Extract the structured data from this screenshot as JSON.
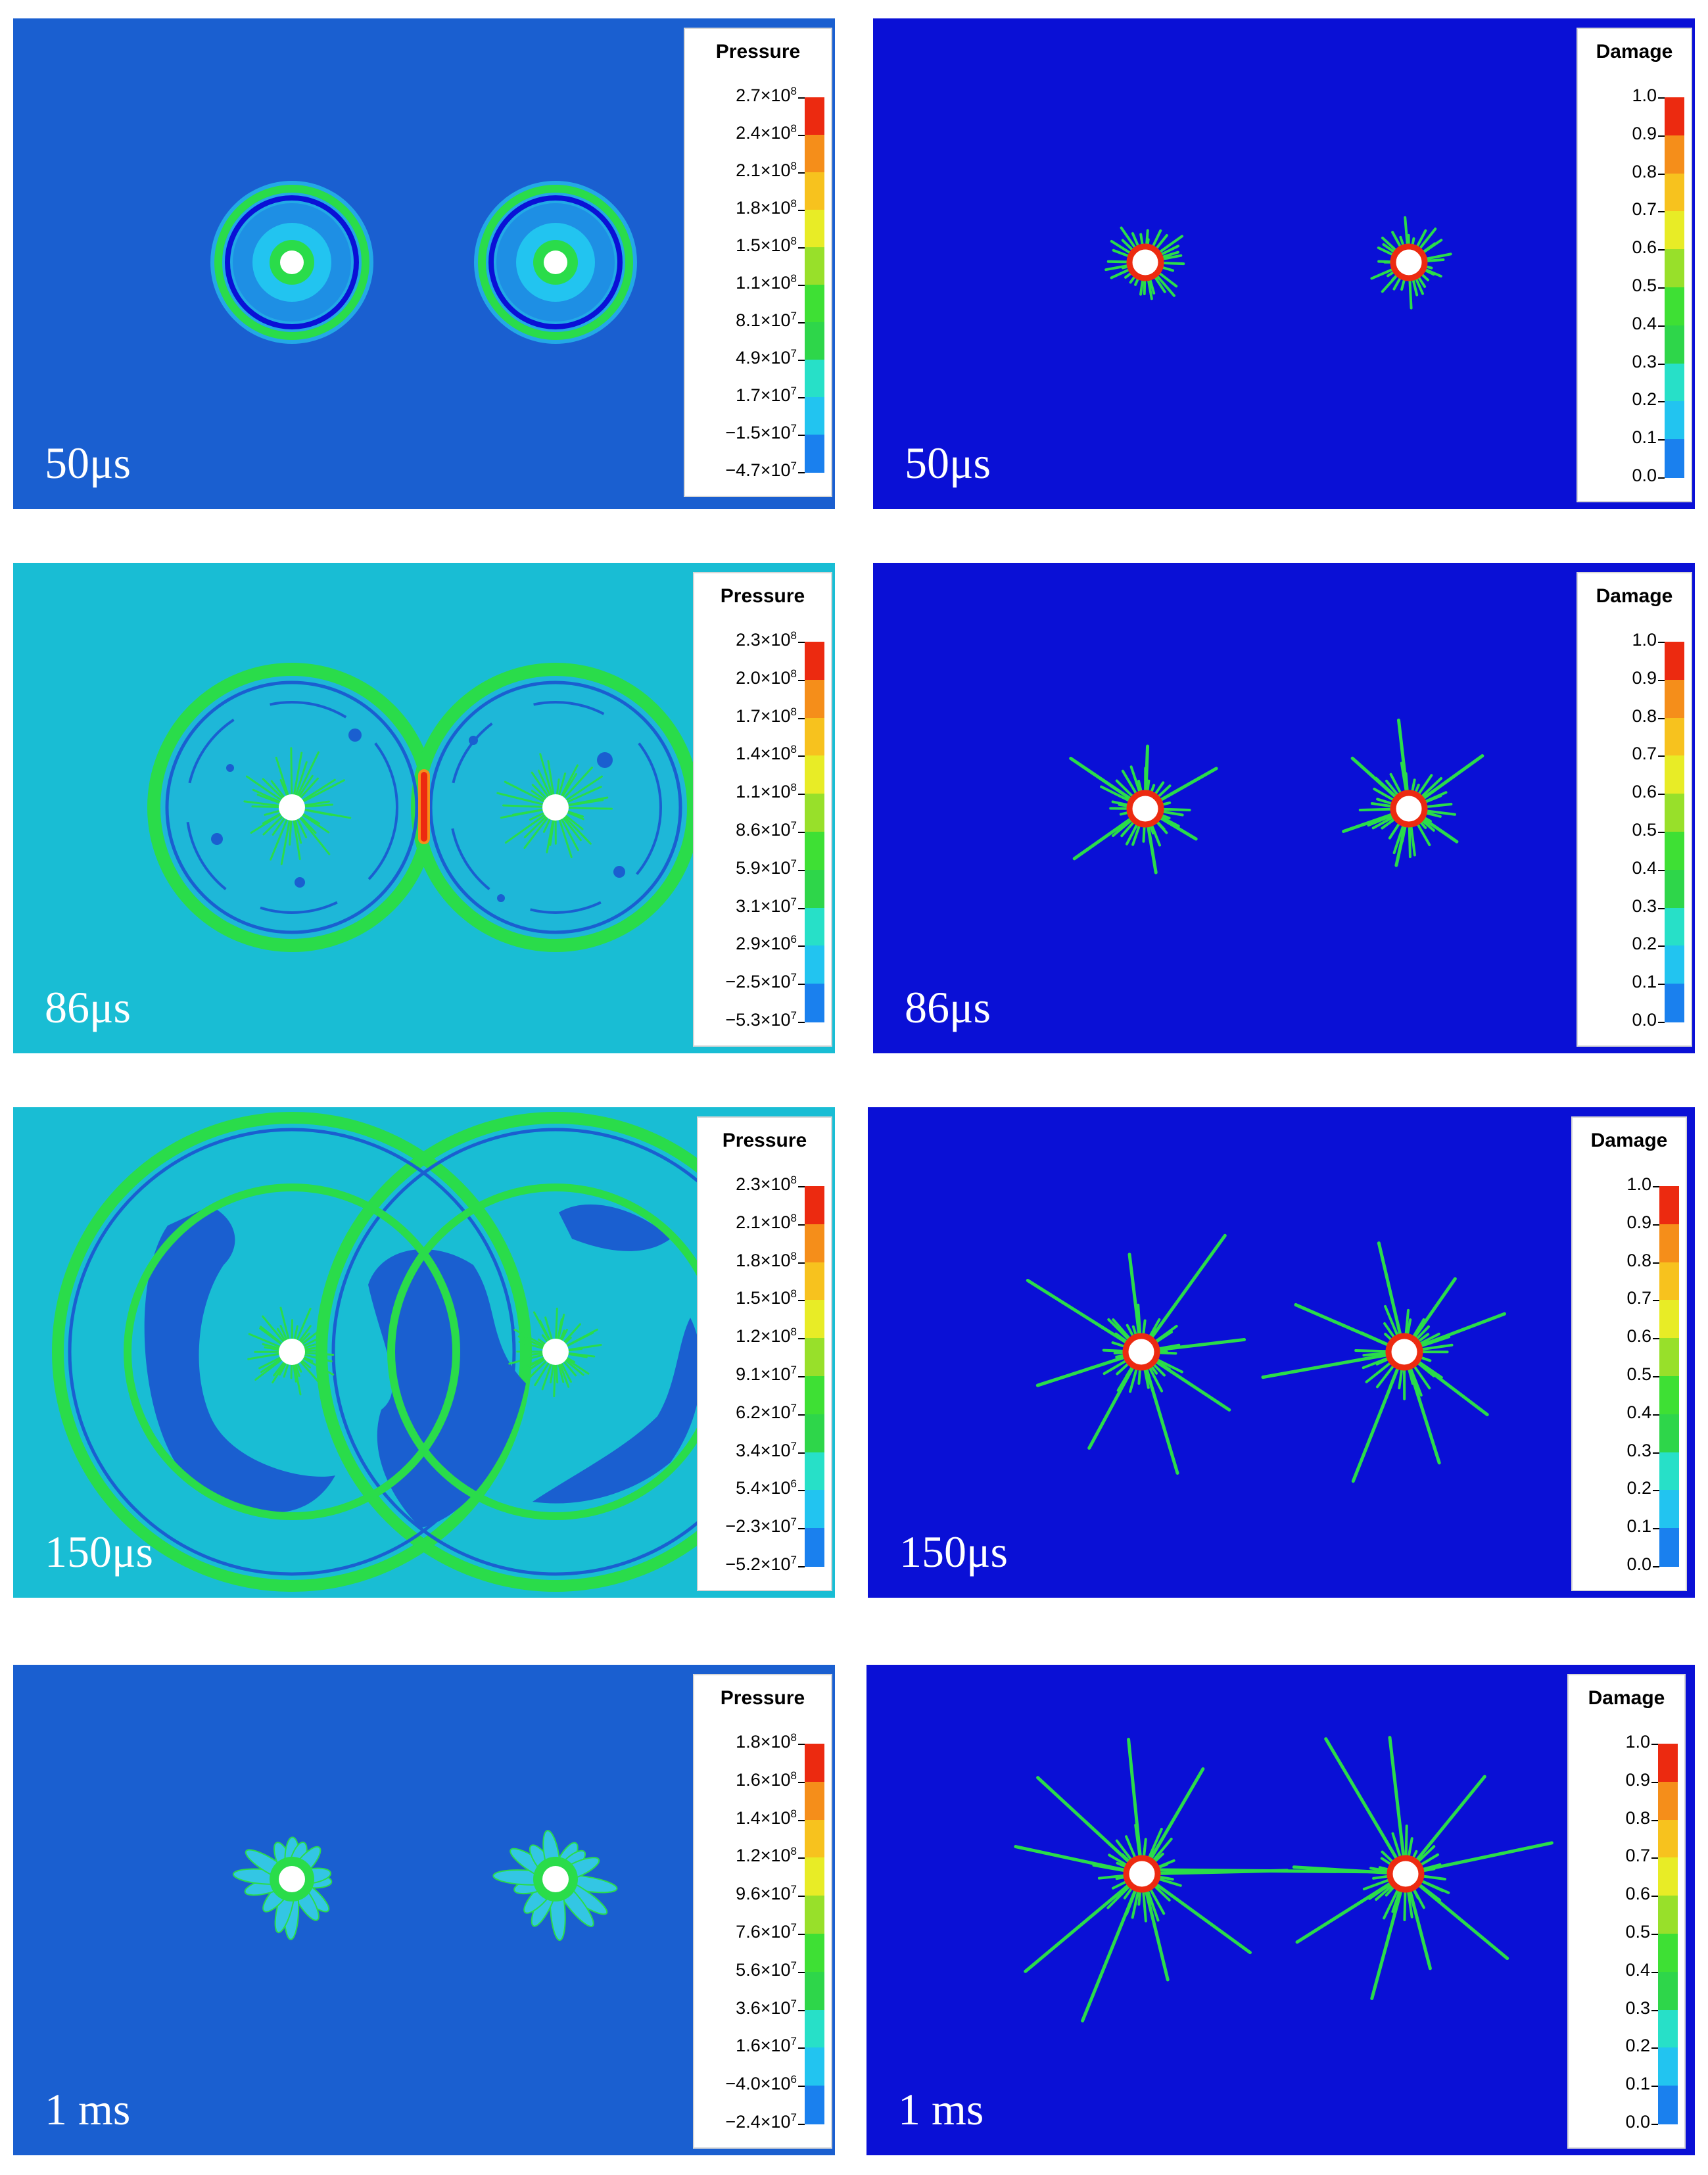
{
  "colors": {
    "blue_bg": "#1a5fd0",
    "deep_blue": "#0a10d6",
    "cyan_bg": "#19bdd4",
    "green": "#2adc4a",
    "scale": [
      "#1010d8",
      "#1a80ee",
      "#22c4f0",
      "#27e0c8",
      "#2ed64a",
      "#3ee034",
      "#98e02a",
      "#e8ec26",
      "#f7c21e",
      "#f58e1a",
      "#ec2a10"
    ]
  },
  "panels": [
    {
      "id": "p50",
      "time_label": "50μs",
      "pressure": {
        "title": "Pressure",
        "ticks": [
          {
            "m": "2.7",
            "e": "8"
          },
          {
            "m": "2.4",
            "e": "8"
          },
          {
            "m": "2.1",
            "e": "8"
          },
          {
            "m": "1.8",
            "e": "8"
          },
          {
            "m": "1.5",
            "e": "8"
          },
          {
            "m": "1.1",
            "e": "8"
          },
          {
            "m": "8.1",
            "e": "7"
          },
          {
            "m": "4.9",
            "e": "7"
          },
          {
            "m": "1.7",
            "e": "7"
          },
          {
            "m": "−1.5",
            "e": "7"
          },
          {
            "m": "−4.7",
            "e": "7"
          }
        ]
      },
      "damage": {
        "title": "Damage",
        "ticks": [
          "1.0",
          "0.9",
          "0.8",
          "0.7",
          "0.6",
          "0.5",
          "0.4",
          "0.3",
          "0.2",
          "0.1",
          "0.0"
        ]
      }
    },
    {
      "id": "p86",
      "time_label": "86μs",
      "pressure": {
        "title": "Pressure",
        "ticks": [
          {
            "m": "2.3",
            "e": "8"
          },
          {
            "m": "2.0",
            "e": "8"
          },
          {
            "m": "1.7",
            "e": "8"
          },
          {
            "m": "1.4",
            "e": "8"
          },
          {
            "m": "1.1",
            "e": "8"
          },
          {
            "m": "8.6",
            "e": "7"
          },
          {
            "m": "5.9",
            "e": "7"
          },
          {
            "m": "3.1",
            "e": "7"
          },
          {
            "m": "2.9",
            "e": "6"
          },
          {
            "m": "−2.5",
            "e": "7"
          },
          {
            "m": "−5.3",
            "e": "7"
          }
        ]
      },
      "damage": {
        "title": "Damage",
        "ticks": [
          "1.0",
          "0.9",
          "0.8",
          "0.7",
          "0.6",
          "0.5",
          "0.4",
          "0.3",
          "0.2",
          "0.1",
          "0.0"
        ]
      }
    },
    {
      "id": "p150",
      "time_label": "150μs",
      "pressure": {
        "title": "Pressure",
        "ticks": [
          {
            "m": "2.3",
            "e": "8"
          },
          {
            "m": "2.1",
            "e": "8"
          },
          {
            "m": "1.8",
            "e": "8"
          },
          {
            "m": "1.5",
            "e": "8"
          },
          {
            "m": "1.2",
            "e": "8"
          },
          {
            "m": "9.1",
            "e": "7"
          },
          {
            "m": "6.2",
            "e": "7"
          },
          {
            "m": "3.4",
            "e": "7"
          },
          {
            "m": "5.4",
            "e": "6"
          },
          {
            "m": "−2.3",
            "e": "7"
          },
          {
            "m": "−5.2",
            "e": "7"
          }
        ]
      },
      "damage": {
        "title": "Damage",
        "ticks": [
          "1.0",
          "0.9",
          "0.8",
          "0.7",
          "0.6",
          "0.5",
          "0.4",
          "0.3",
          "0.2",
          "0.1",
          "0.0"
        ]
      }
    },
    {
      "id": "p1ms",
      "time_label": "1 ms",
      "pressure": {
        "title": "Pressure",
        "ticks": [
          {
            "m": "1.8",
            "e": "8"
          },
          {
            "m": "1.6",
            "e": "8"
          },
          {
            "m": "1.4",
            "e": "8"
          },
          {
            "m": "1.2",
            "e": "8"
          },
          {
            "m": "9.6",
            "e": "7"
          },
          {
            "m": "7.6",
            "e": "7"
          },
          {
            "m": "5.6",
            "e": "7"
          },
          {
            "m": "3.6",
            "e": "7"
          },
          {
            "m": "1.6",
            "e": "7"
          },
          {
            "m": "−4.0",
            "e": "6"
          },
          {
            "m": "−2.4",
            "e": "7"
          }
        ]
      },
      "damage": {
        "title": "Damage",
        "ticks": [
          "1.0",
          "0.9",
          "0.8",
          "0.7",
          "0.6",
          "0.5",
          "0.4",
          "0.3",
          "0.2",
          "0.1",
          "0.0"
        ]
      }
    }
  ]
}
